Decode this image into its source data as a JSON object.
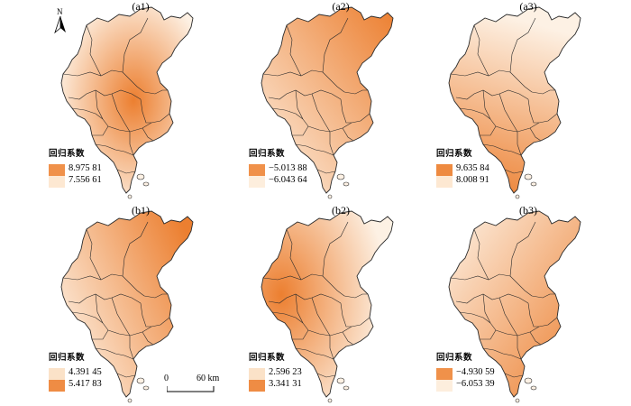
{
  "panels": [
    {
      "label": "(a1)",
      "legend_title": "回归系数",
      "high": "8.975 81",
      "low": "7.556 61",
      "hi_color": "#f0914a",
      "lo_color": "#fde8d2",
      "gradient": "center-out"
    },
    {
      "label": "(a2)",
      "legend_title": "回归系数",
      "high": "−5.013 88",
      "low": "−6.043 64",
      "hi_color": "#f0914a",
      "lo_color": "#fdeedd",
      "gradient": "northeast"
    },
    {
      "label": "(a3)",
      "legend_title": "回归系数",
      "high": "9.635 84",
      "low": "8.008 91",
      "hi_color": "#ee8a40",
      "lo_color": "#fde8d2",
      "gradient": "south"
    },
    {
      "label": "(b1)",
      "legend_title": "回归系数",
      "high": "4.391 45",
      "low": "5.417 83",
      "hi_color": "#fbe2c8",
      "lo_color": "#ef8c44",
      "gradient": "east"
    },
    {
      "label": "(b2)",
      "legend_title": "回归系数",
      "high": "2.596 23",
      "low": "3.341 31",
      "hi_color": "#fbe2c8",
      "lo_color": "#ef8c44",
      "gradient": "west-mid"
    },
    {
      "label": "(b3)",
      "legend_title": "回归系数",
      "high": "−4.930 59",
      "low": "−6.053 39",
      "hi_color": "#f0914a",
      "lo_color": "#fdeedd",
      "gradient": "southeast"
    }
  ],
  "north_arrow": "N",
  "scale_bar": {
    "zero": "0",
    "end": "60 km"
  },
  "colors": {
    "boundary": "#2b2b2b",
    "light": "#fdf1e4",
    "dark": "#ec7f30"
  }
}
